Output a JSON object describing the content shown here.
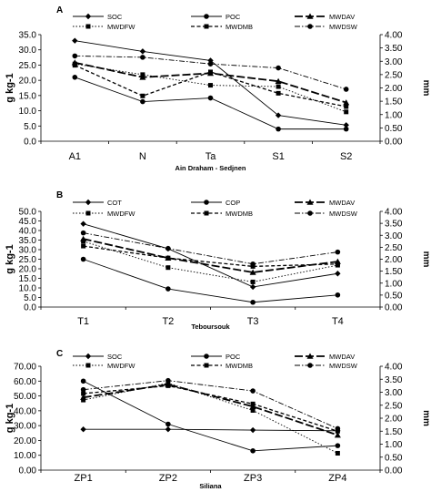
{
  "chart_data": [
    {
      "type": "line",
      "panel_label": "A",
      "xlabel": "Ain Draham - Sedjnen",
      "ylabel": "g kg-1",
      "ylabel_right": "mm",
      "categories": [
        "A1",
        "N",
        "Ta",
        "S1",
        "S2"
      ],
      "ylim": [
        0,
        35
      ],
      "yticks": [
        "0.0",
        "5.0",
        "10.0",
        "15.0",
        "20.0",
        "25.0",
        "30.0",
        "35.0"
      ],
      "ylim_right": [
        0,
        4
      ],
      "yticks_right": [
        "0.00",
        "0.50",
        "1.00",
        "1.50",
        "2.00",
        "2.50",
        "3.00",
        "3.50",
        "4.00"
      ],
      "grid": false,
      "legend_position": "top",
      "series": [
        {
          "name": "SOC",
          "axis": "left",
          "marker": "diamond",
          "dash": "solid",
          "values": [
            33.0,
            29.5,
            26.5,
            8.5,
            5.3
          ]
        },
        {
          "name": "POC",
          "axis": "left",
          "marker": "circle",
          "dash": "solid",
          "values": [
            21.0,
            13.0,
            14.2,
            4.0,
            4.0
          ]
        },
        {
          "name": "MWDAV",
          "axis": "right",
          "marker": "triangle",
          "dash": "longdash",
          "values": [
            2.95,
            2.4,
            2.55,
            2.25,
            1.45
          ]
        },
        {
          "name": "MWDFW",
          "axis": "right",
          "marker": "square",
          "dash": "dotted",
          "values": [
            2.9,
            2.5,
            2.1,
            2.05,
            1.1
          ]
        },
        {
          "name": "MWDMB",
          "axis": "right",
          "marker": "square",
          "dash": "dash",
          "values": [
            2.85,
            1.7,
            2.6,
            1.8,
            1.3
          ]
        },
        {
          "name": "MWDSW",
          "axis": "right",
          "marker": "circle",
          "dash": "dashdot",
          "values": [
            3.2,
            3.15,
            2.9,
            2.75,
            1.95
          ]
        }
      ]
    },
    {
      "type": "line",
      "panel_label": "B",
      "xlabel": "Teboursouk",
      "ylabel": "g kg-1",
      "ylabel_right": "mm",
      "categories": [
        "T1",
        "T2",
        "T3",
        "T4"
      ],
      "ylim": [
        0,
        50
      ],
      "yticks": [
        "0.0",
        "5.0",
        "10.0",
        "15.0",
        "20.0",
        "25.0",
        "30.0",
        "35.0",
        "40.0",
        "45.0",
        "50.0"
      ],
      "ylim_right": [
        0,
        4
      ],
      "yticks_right": [
        "0.00",
        "0.50",
        "1.00",
        "1.50",
        "2.00",
        "2.50",
        "3.00",
        "3.50",
        "4.00"
      ],
      "grid": false,
      "legend_position": "top",
      "series": [
        {
          "name": "COT",
          "axis": "left",
          "marker": "diamond",
          "dash": "solid",
          "values": [
            43.5,
            30.5,
            10.5,
            17.5
          ]
        },
        {
          "name": "COP",
          "axis": "left",
          "marker": "circle",
          "dash": "solid",
          "values": [
            25.0,
            9.5,
            2.5,
            6.3
          ]
        },
        {
          "name": "MWDAV",
          "axis": "right",
          "marker": "triangle",
          "dash": "longdash",
          "values": [
            2.85,
            2.05,
            1.45,
            1.9
          ]
        },
        {
          "name": "MWDFW",
          "axis": "right",
          "marker": "square",
          "dash": "dotted",
          "values": [
            2.75,
            1.65,
            1.05,
            1.75
          ]
        },
        {
          "name": "MWDMB",
          "axis": "right",
          "marker": "square",
          "dash": "dash",
          "values": [
            2.55,
            2.05,
            1.7,
            1.8
          ]
        },
        {
          "name": "MWDSW",
          "axis": "right",
          "marker": "circle",
          "dash": "dashdot",
          "values": [
            3.1,
            2.45,
            1.8,
            2.3
          ]
        }
      ]
    },
    {
      "type": "line",
      "panel_label": "C",
      "xlabel": "Siliana",
      "ylabel": "g kg-1",
      "ylabel_right": "mm",
      "categories": [
        "ZP1",
        "ZP2",
        "ZP3",
        "ZP4"
      ],
      "ylim": [
        0,
        70
      ],
      "yticks": [
        "0.00",
        "10.00",
        "20.00",
        "30.00",
        "40.00",
        "50.00",
        "60.00",
        "70.00"
      ],
      "ylim_right": [
        0,
        4
      ],
      "yticks_right": [
        "0.00",
        "0.50",
        "1.00",
        "1.50",
        "2.00",
        "2.50",
        "3.00",
        "3.50",
        "4.00"
      ],
      "grid": false,
      "legend_position": "top",
      "series": [
        {
          "name": "SOC",
          "axis": "left",
          "marker": "diamond",
          "dash": "solid",
          "values": [
            27.5,
            27.5,
            27.0,
            26.5
          ]
        },
        {
          "name": "POC",
          "axis": "left",
          "marker": "circle",
          "dash": "solid",
          "values": [
            60.0,
            31.0,
            13.0,
            16.5
          ]
        },
        {
          "name": "MWDAV",
          "axis": "right",
          "marker": "triangle",
          "dash": "longdash",
          "values": [
            2.8,
            3.3,
            2.45,
            1.35
          ]
        },
        {
          "name": "MWDFW",
          "axis": "right",
          "marker": "square",
          "dash": "dotted",
          "values": [
            2.7,
            3.35,
            2.3,
            0.65
          ]
        },
        {
          "name": "MWDMB",
          "axis": "right",
          "marker": "square",
          "dash": "dash",
          "values": [
            2.95,
            3.25,
            2.55,
            1.5
          ]
        },
        {
          "name": "MWDSW",
          "axis": "right",
          "marker": "circle",
          "dash": "dashdot",
          "values": [
            3.1,
            3.45,
            3.05,
            1.6
          ]
        }
      ]
    }
  ]
}
